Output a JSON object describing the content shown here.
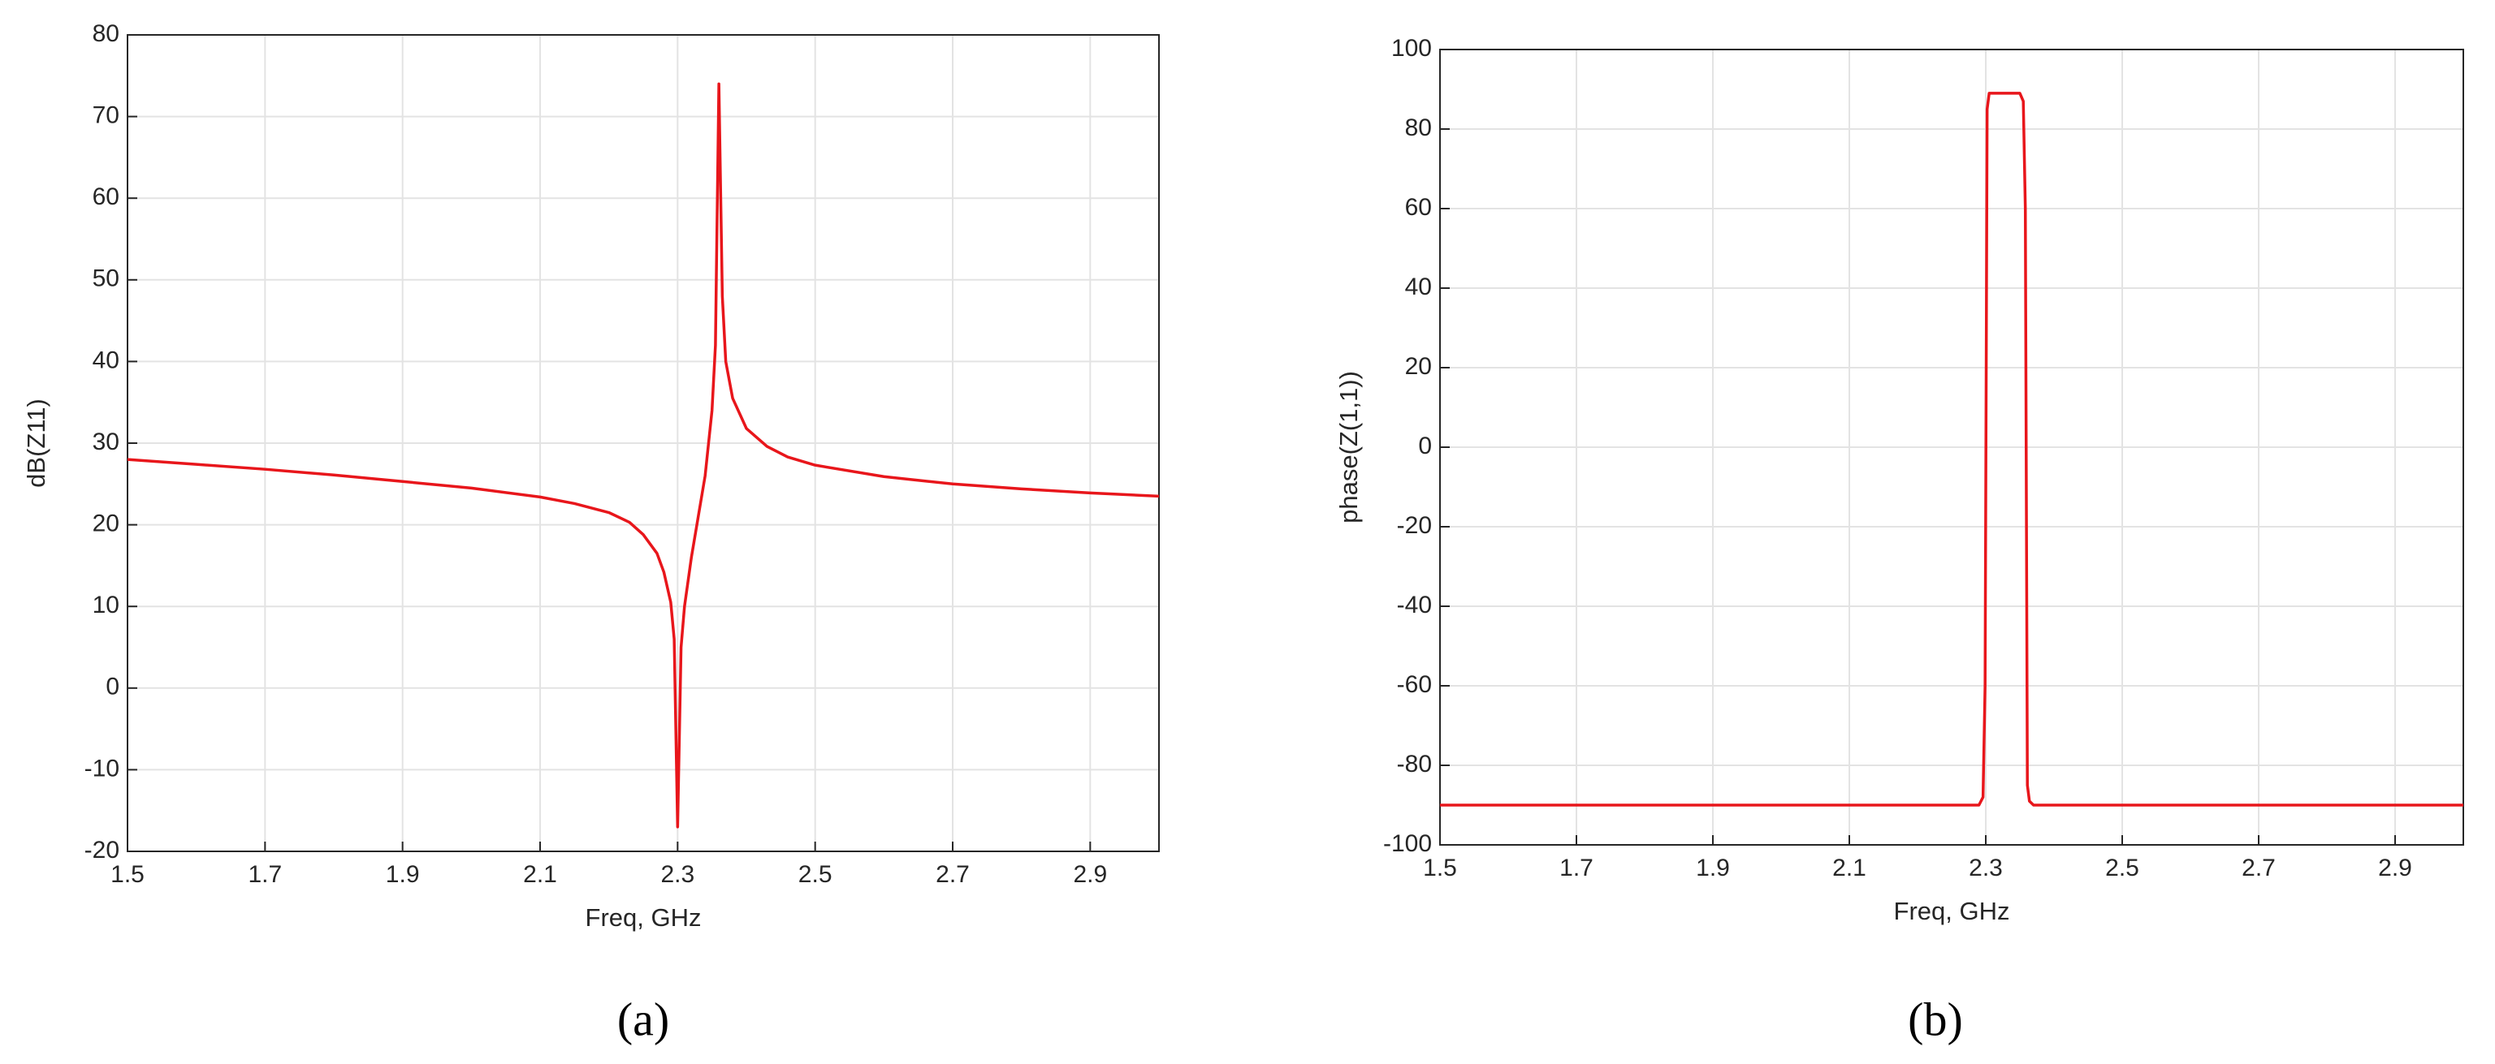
{
  "chart_data": [
    {
      "type": "line",
      "label": "(a)",
      "xlabel": "Freq, GHz",
      "ylabel": "dB(Z11)",
      "color": "#e8161b",
      "grid": true,
      "xlim": [
        1.5,
        3.0
      ],
      "xticks": [
        1.5,
        1.7,
        1.9,
        2.1,
        2.3,
        2.5,
        2.7,
        2.9
      ],
      "ylim": [
        -20,
        80
      ],
      "yticks": [
        -20,
        -10,
        0,
        10,
        20,
        30,
        40,
        50,
        60,
        70,
        80
      ],
      "x": [
        1.5,
        1.6,
        1.7,
        1.8,
        1.9,
        2.0,
        2.1,
        2.15,
        2.2,
        2.23,
        2.25,
        2.27,
        2.28,
        2.29,
        2.295,
        2.3,
        2.305,
        2.31,
        2.32,
        2.33,
        2.34,
        2.35,
        2.355,
        2.36,
        2.365,
        2.37,
        2.38,
        2.4,
        2.43,
        2.46,
        2.5,
        2.6,
        2.7,
        2.8,
        2.9,
        3.0
      ],
      "values": [
        28,
        27.4,
        26.8,
        26.1,
        25.3,
        24.5,
        23.4,
        22.6,
        21.5,
        20.3,
        18.8,
        16.5,
        14.2,
        10.5,
        6,
        -17,
        5,
        10,
        16,
        21,
        26,
        34,
        42,
        74,
        48,
        40,
        35.5,
        31.8,
        29.6,
        28.3,
        27.3,
        25.9,
        25,
        24.4,
        23.9,
        23.5
      ]
    },
    {
      "type": "line",
      "label": "(b)",
      "xlabel": "Freq, GHz",
      "ylabel": "phase(Z(1,1))",
      "color": "#e8161b",
      "grid": true,
      "xlim": [
        1.5,
        3.0
      ],
      "xticks": [
        1.5,
        1.7,
        1.9,
        2.1,
        2.3,
        2.5,
        2.7,
        2.9
      ],
      "ylim": [
        -100,
        100
      ],
      "yticks": [
        -100,
        -80,
        -60,
        -40,
        -20,
        0,
        20,
        40,
        60,
        80,
        100
      ],
      "x": [
        1.5,
        2.0,
        2.29,
        2.296,
        2.299,
        2.302,
        2.305,
        2.35,
        2.355,
        2.358,
        2.361,
        2.364,
        2.37,
        2.5,
        3.0
      ],
      "values": [
        -90,
        -90,
        -90,
        -88,
        -60,
        85,
        89,
        89,
        87,
        60,
        -85,
        -89,
        -90,
        -90,
        -90
      ]
    }
  ]
}
